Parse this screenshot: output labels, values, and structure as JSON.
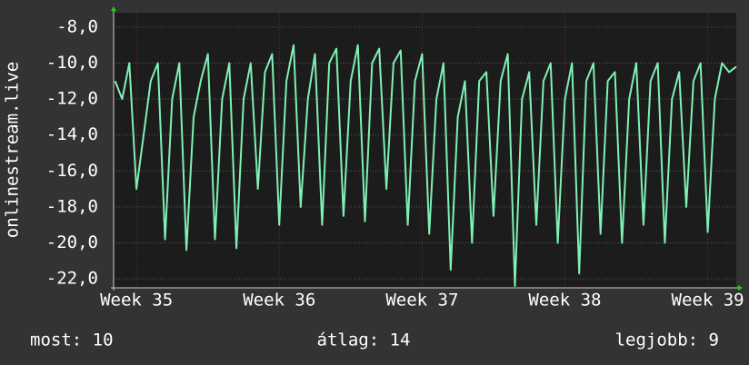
{
  "chart_data": {
    "type": "line",
    "y_label": "onlinestream.live",
    "x": [
      34.85,
      34.9,
      34.95,
      35,
      35.05,
      35.1,
      35.15,
      35.2,
      35.25,
      35.3,
      35.35,
      35.4,
      35.45,
      35.5,
      35.55,
      35.6,
      35.65,
      35.7,
      35.75,
      35.8,
      35.85,
      35.9,
      35.95,
      36,
      36.05,
      36.1,
      36.15,
      36.2,
      36.25,
      36.3,
      36.35,
      36.4,
      36.45,
      36.5,
      36.55,
      36.6,
      36.65,
      36.7,
      36.75,
      36.8,
      36.85,
      36.9,
      36.95,
      37,
      37.05,
      37.1,
      37.15,
      37.2,
      37.25,
      37.3,
      37.35,
      37.4,
      37.45,
      37.5,
      37.55,
      37.6,
      37.65,
      37.7,
      37.75,
      37.8,
      37.85,
      37.9,
      37.95,
      38,
      38.05,
      38.1,
      38.15,
      38.2,
      38.25,
      38.3,
      38.35,
      38.4,
      38.45,
      38.5,
      38.55,
      38.6,
      38.65,
      38.7,
      38.75,
      38.8,
      38.85,
      38.9,
      38.95,
      39,
      39.05,
      39.1,
      39.15,
      39.2
    ],
    "series": [
      {
        "color": "#7ff0b4",
        "values": [
          -11,
          -12,
          -10,
          -17,
          -14,
          -11,
          -10,
          -19.8,
          -12,
          -10,
          -20.4,
          -13,
          -11,
          -9.5,
          -19.8,
          -12,
          -10,
          -20.3,
          -12,
          -10,
          -17,
          -10.5,
          -9.5,
          -19,
          -11,
          -9,
          -18,
          -12,
          -9.5,
          -19,
          -10,
          -9.2,
          -18.5,
          -11,
          -9,
          -18.8,
          -10,
          -9.2,
          -17,
          -10,
          -9.3,
          -19,
          -11,
          -9.5,
          -19.5,
          -12,
          -10,
          -21.5,
          -13,
          -11,
          -20,
          -11,
          -10.5,
          -18.5,
          -11,
          -9.5,
          -22.4,
          -12,
          -10.5,
          -19,
          -11,
          -10,
          -20,
          -12,
          -10,
          -21.7,
          -11,
          -10,
          -19.5,
          -11,
          -10.5,
          -20,
          -12,
          -10,
          -19,
          -11,
          -10,
          -20,
          -12,
          -10.5,
          -18,
          -11,
          -10,
          -19.4,
          -12,
          -10,
          -10.5,
          -10.2
        ]
      }
    ],
    "xlim": [
      34.84,
      39.2
    ],
    "xticks": [
      {
        "value": 35,
        "label": "Week 35"
      },
      {
        "value": 36,
        "label": "Week 36"
      },
      {
        "value": 37,
        "label": "Week 37"
      },
      {
        "value": 38,
        "label": "Week 38"
      },
      {
        "value": 39,
        "label": "Week 39"
      }
    ],
    "ylim": [
      -22.5,
      -7.2
    ],
    "yticks": [
      {
        "value": -22,
        "label": "-22,0"
      },
      {
        "value": -20,
        "label": "-20,0"
      },
      {
        "value": -18,
        "label": "-18,0"
      },
      {
        "value": -16,
        "label": "-16,0"
      },
      {
        "value": -14,
        "label": "-14,0"
      },
      {
        "value": -12,
        "label": "-12,0"
      },
      {
        "value": -10,
        "label": "-10,0"
      },
      {
        "value": -8,
        "label": "-8,0"
      }
    ],
    "grid": true,
    "footer": {
      "current": "most: 10",
      "average": "átlag: 14",
      "best": "legjobb: 9"
    }
  }
}
